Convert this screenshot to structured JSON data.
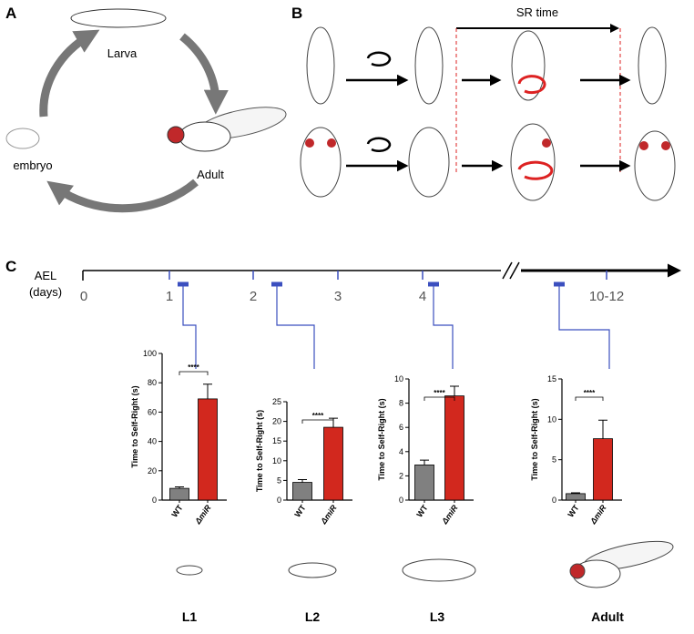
{
  "panel_labels": [
    "A",
    "B",
    "C"
  ],
  "panel_a": {
    "larva": "Larva",
    "adult": "Adult",
    "embryo": "embryo"
  },
  "panel_b": {
    "interval": "SR time"
  },
  "timeline": {
    "label_lines": [
      "AEL",
      "(days)"
    ],
    "ticks": [
      "0",
      "1",
      "2",
      "3",
      "4",
      "10-12"
    ]
  },
  "stages": [
    "L1",
    "L2",
    "L3",
    "Adult"
  ],
  "chart_data": [
    {
      "type": "bar",
      "ylabel": "Time to Self-Right (s)",
      "categories": [
        "WT",
        "ΔmiR"
      ],
      "values": [
        8,
        69
      ],
      "errors": [
        1,
        10
      ],
      "colors": [
        "#808080",
        "#d2281e"
      ],
      "ylim": [
        0,
        100
      ],
      "yticks": [
        0,
        20,
        40,
        60,
        80,
        100
      ],
      "annotation": "****"
    },
    {
      "type": "bar",
      "ylabel": "Time to Self-Right (s)",
      "categories": [
        "WT",
        "ΔmiR"
      ],
      "values": [
        4.5,
        18.5
      ],
      "errors": [
        0.7,
        2.3
      ],
      "colors": [
        "#808080",
        "#d2281e"
      ],
      "ylim": [
        0,
        25
      ],
      "yticks": [
        0,
        5,
        10,
        15,
        20,
        25
      ],
      "annotation": "****"
    },
    {
      "type": "bar",
      "ylabel": "Time to Self-Right (s)",
      "categories": [
        "WT",
        "ΔmiR"
      ],
      "values": [
        2.9,
        8.6
      ],
      "errors": [
        0.4,
        0.8
      ],
      "colors": [
        "#808080",
        "#d2281e"
      ],
      "ylim": [
        0,
        10
      ],
      "yticks": [
        0,
        2,
        4,
        6,
        8,
        10
      ],
      "annotation": "****"
    },
    {
      "type": "bar",
      "ylabel": "Time to Self-Right (s)",
      "categories": [
        "WT",
        "ΔmiR"
      ],
      "values": [
        0.8,
        7.6
      ],
      "errors": [
        0.1,
        2.3
      ],
      "colors": [
        "#808080",
        "#d2281e"
      ],
      "ylim": [
        0,
        15
      ],
      "yticks": [
        0,
        5,
        10,
        15
      ],
      "annotation": "****"
    }
  ]
}
